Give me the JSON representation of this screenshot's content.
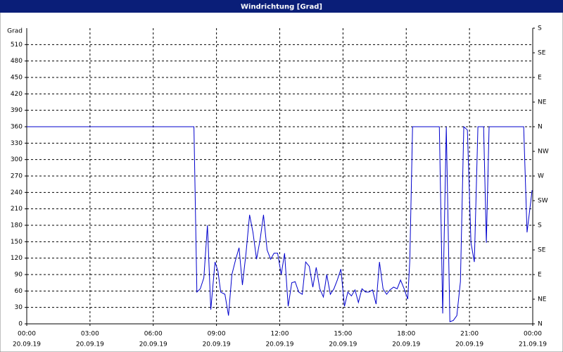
{
  "chart_data": {
    "type": "line",
    "title": "Windrichtung [Grad]",
    "ylabel": "Grad",
    "xlim": [
      0,
      24
    ],
    "xticks": [
      {
        "value": 0,
        "label": [
          "00:00",
          "20.09.19"
        ]
      },
      {
        "value": 3,
        "label": [
          "03:00",
          "20.09.19"
        ]
      },
      {
        "value": 6,
        "label": [
          "06:00",
          "20.09.19"
        ]
      },
      {
        "value": 9,
        "label": [
          "09:00",
          "20.09.19"
        ]
      },
      {
        "value": 12,
        "label": [
          "12:00",
          "20.09.19"
        ]
      },
      {
        "value": 15,
        "label": [
          "15:00",
          "20.09.19"
        ]
      },
      {
        "value": 18,
        "label": [
          "18:00",
          "20.09.19"
        ]
      },
      {
        "value": 21,
        "label": [
          "21:00",
          "20.09.19"
        ]
      },
      {
        "value": 24,
        "label": [
          "00:00",
          "21.09.19"
        ]
      }
    ],
    "ylim": [
      0,
      540
    ],
    "yticks": [
      0,
      30,
      60,
      90,
      120,
      150,
      180,
      210,
      240,
      270,
      300,
      330,
      360,
      390,
      420,
      450,
      480,
      510
    ],
    "y2lim": [
      0,
      540
    ],
    "y2ticks": [
      {
        "value": 0,
        "label": "N"
      },
      {
        "value": 45,
        "label": "NE"
      },
      {
        "value": 90,
        "label": "E"
      },
      {
        "value": 135,
        "label": "SE"
      },
      {
        "value": 180,
        "label": "S"
      },
      {
        "value": 225,
        "label": "SW"
      },
      {
        "value": 270,
        "label": "W"
      },
      {
        "value": 315,
        "label": "NW"
      },
      {
        "value": 360,
        "label": "N"
      },
      {
        "value": 405,
        "label": "NE"
      },
      {
        "value": 450,
        "label": "E"
      },
      {
        "value": 495,
        "label": "SE"
      },
      {
        "value": 540,
        "label": "S"
      }
    ],
    "grid": true,
    "x": [
      0,
      7.93,
      8.07,
      8.23,
      8.4,
      8.57,
      8.73,
      8.93,
      9.07,
      9.2,
      9.4,
      9.57,
      9.73,
      9.9,
      10.07,
      10.23,
      10.4,
      10.57,
      10.73,
      10.9,
      11.07,
      11.23,
      11.4,
      11.57,
      11.73,
      11.9,
      12.07,
      12.23,
      12.4,
      12.57,
      12.73,
      12.9,
      13.07,
      13.23,
      13.4,
      13.57,
      13.73,
      13.9,
      14.07,
      14.23,
      14.4,
      14.57,
      14.73,
      14.9,
      15.07,
      15.23,
      15.4,
      15.57,
      15.73,
      15.9,
      16.07,
      16.23,
      16.4,
      16.57,
      16.73,
      16.9,
      17.07,
      17.23,
      17.4,
      17.57,
      17.73,
      17.9,
      18.07,
      18.17,
      18.3,
      19.57,
      19.73,
      19.9,
      20.07,
      20.23,
      20.4,
      20.57,
      20.73,
      20.9,
      21.07,
      21.23,
      21.4,
      21.67,
      21.8,
      21.93,
      23.57,
      23.73,
      23.97
    ],
    "series": [
      {
        "name": "Windrichtung",
        "color": "#0000cc",
        "values": [
          360,
          360,
          58,
          64,
          84,
          180,
          26,
          113,
          96,
          58,
          54,
          15,
          90,
          116,
          139,
          71,
          129,
          199,
          167,
          118,
          154,
          199,
          135,
          118,
          129,
          129,
          90,
          129,
          32,
          75,
          77,
          58,
          54,
          113,
          105,
          67,
          103,
          64,
          49,
          90,
          54,
          64,
          80,
          100,
          32,
          58,
          51,
          62,
          39,
          64,
          58,
          58,
          62,
          36,
          113,
          64,
          54,
          62,
          67,
          64,
          80,
          64,
          45,
          116,
          360,
          360,
          19,
          360,
          4,
          6,
          15,
          77,
          360,
          354,
          148,
          113,
          360,
          360,
          148,
          360,
          360,
          167,
          244
        ]
      }
    ]
  }
}
